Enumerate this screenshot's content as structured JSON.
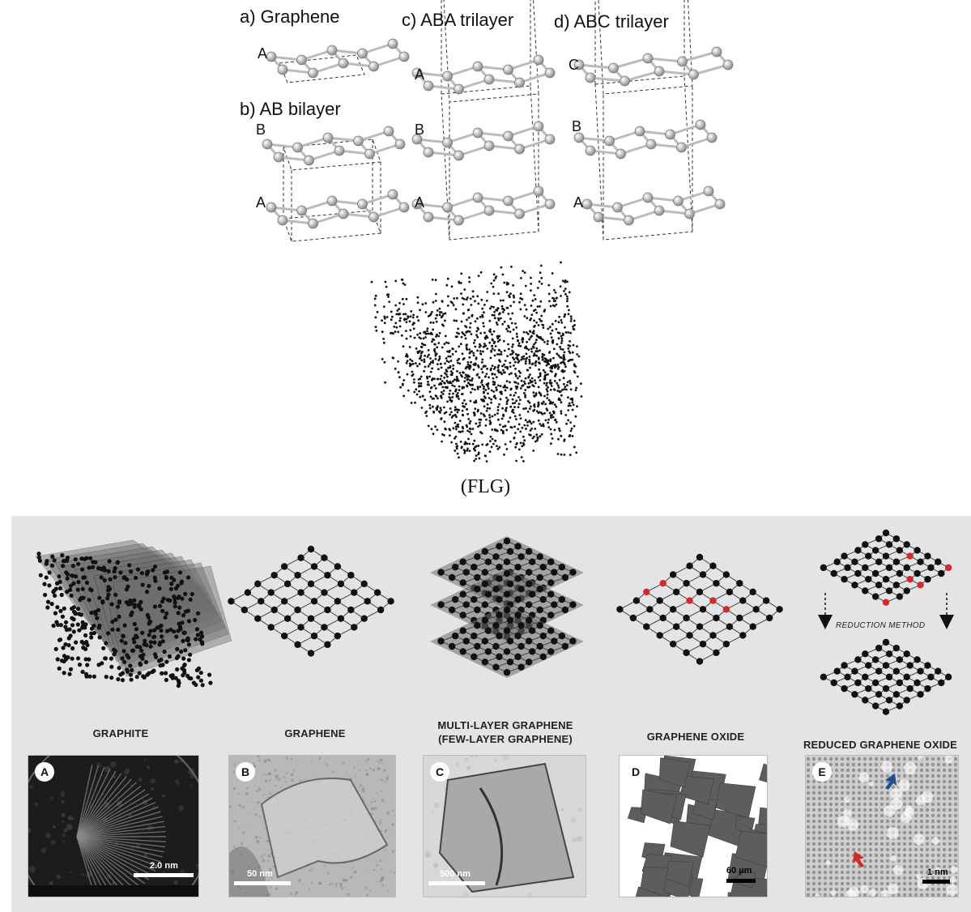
{
  "top": {
    "panels": [
      {
        "id": "a",
        "label": "a) Graphene",
        "layers": [
          "A"
        ]
      },
      {
        "id": "b",
        "label": "b) AB bilayer",
        "layers": [
          "B",
          "A"
        ]
      },
      {
        "id": "c",
        "label": "c) ABA trilayer",
        "layers": [
          "A",
          "B",
          "A"
        ]
      },
      {
        "id": "d",
        "label": "d) ABC trilayer",
        "layers": [
          "C",
          "B",
          "A"
        ]
      }
    ],
    "flg_caption": "(FLG)"
  },
  "bottom": {
    "forms": [
      {
        "id": "graphite",
        "label": "GRAPHITE"
      },
      {
        "id": "graphene",
        "label": "GRAPHENE"
      },
      {
        "id": "multilayer",
        "label_line1": "MULTI-LAYER GRAPHENE",
        "label_line2": "(FEW-LAYER GRAPHENE)"
      },
      {
        "id": "oxide",
        "label": "GRAPHENE OXIDE"
      },
      {
        "id": "reduced",
        "label": "REDUCED GRAPHENE OXIDE"
      }
    ],
    "reduction_method": "REDUCTION METHOD",
    "micrographs": [
      {
        "badge": "A",
        "scale": "2.0 nm"
      },
      {
        "badge": "B",
        "scale": "50 nm"
      },
      {
        "badge": "C",
        "scale": "500 nm"
      },
      {
        "badge": "D",
        "scale": "60 µm"
      },
      {
        "badge": "E",
        "scale": "1 nm"
      }
    ],
    "colors": {
      "panel_bg": "#e3e4e6",
      "carbon": "#111111",
      "oxygen": "#d42a2a",
      "sheet": "#6e6e6e",
      "blue_arrow": "#1d4f91",
      "red_arrow": "#d42a2a"
    }
  }
}
